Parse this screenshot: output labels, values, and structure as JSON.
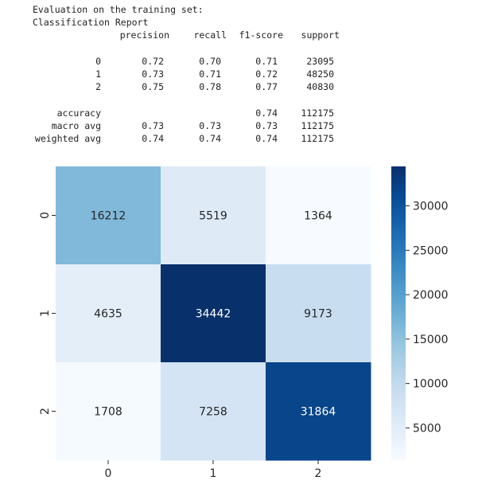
{
  "report": {
    "title_line": "Evaluation on the training set:",
    "subtitle_line": "Classification Report",
    "columns": [
      "precision",
      "recall",
      "f1-score",
      "support"
    ],
    "class_rows": [
      {
        "label": "0",
        "precision": "0.72",
        "recall": "0.70",
        "f1": "0.71",
        "support": "23095"
      },
      {
        "label": "1",
        "precision": "0.73",
        "recall": "0.71",
        "f1": "0.72",
        "support": "48250"
      },
      {
        "label": "2",
        "precision": "0.75",
        "recall": "0.78",
        "f1": "0.77",
        "support": "40830"
      }
    ],
    "summary_rows": [
      {
        "label": "accuracy",
        "precision": "",
        "recall": "",
        "f1": "0.74",
        "support": "112175"
      },
      {
        "label": "macro avg",
        "precision": "0.73",
        "recall": "0.73",
        "f1": "0.73",
        "support": "112175"
      },
      {
        "label": "weighted avg",
        "precision": "0.74",
        "recall": "0.74",
        "f1": "0.74",
        "support": "112175"
      }
    ]
  },
  "chart_data": {
    "type": "heatmap",
    "title": "",
    "xlabel": "",
    "ylabel": "",
    "x_categories": [
      "0",
      "1",
      "2"
    ],
    "y_categories": [
      "0",
      "1",
      "2"
    ],
    "matrix": [
      [
        16212,
        5519,
        1364
      ],
      [
        4635,
        34442,
        9173
      ],
      [
        1708,
        7258,
        31864
      ]
    ],
    "colormap": "Blues",
    "annotations": true,
    "colorbar": {
      "ticks": [
        5000,
        10000,
        15000,
        20000,
        25000,
        30000
      ],
      "range": [
        1364,
        34442
      ]
    },
    "annotation_colors": {
      "light": "#ffffff",
      "dark": "#262626"
    }
  }
}
